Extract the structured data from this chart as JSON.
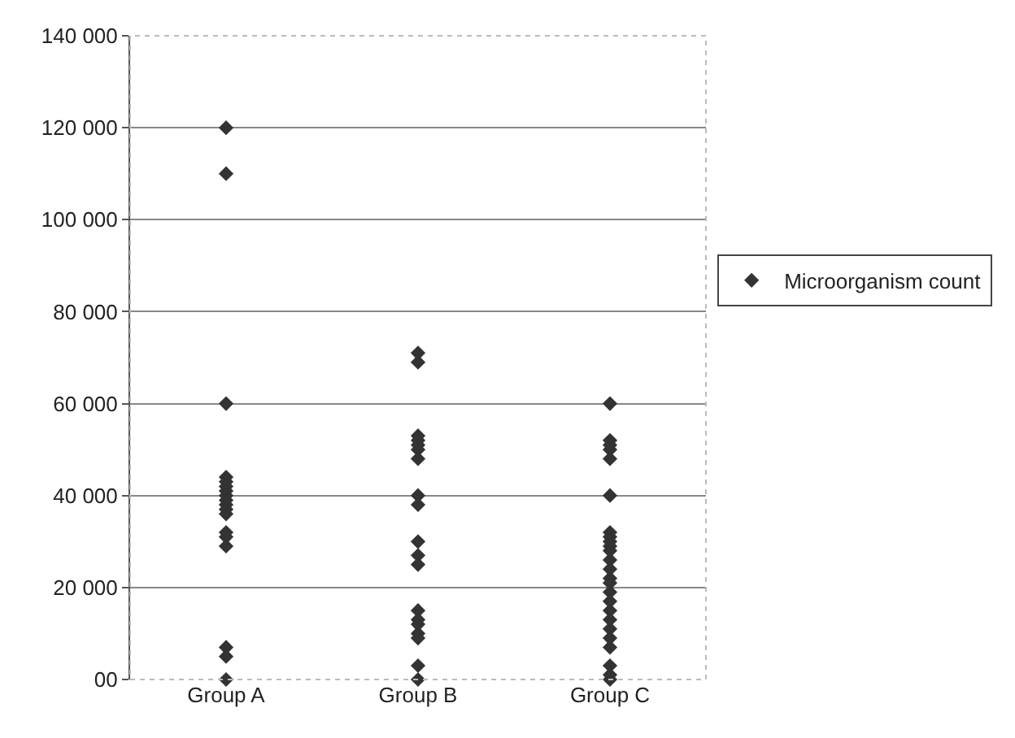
{
  "chart_data": {
    "type": "scatter",
    "categories": [
      "Group A",
      "Group B",
      "Group C"
    ],
    "series": [
      {
        "name": "Microorganism count",
        "color": "#333333",
        "x": [
          "Group A",
          "Group A",
          "Group A",
          "Group A",
          "Group A",
          "Group A",
          "Group A",
          "Group A",
          "Group A",
          "Group A",
          "Group A",
          "Group A",
          "Group A",
          "Group A",
          "Group A",
          "Group A",
          "Group A",
          "Group A",
          "Group B",
          "Group B",
          "Group B",
          "Group B",
          "Group B",
          "Group B",
          "Group B",
          "Group B",
          "Group B",
          "Group B",
          "Group B",
          "Group B",
          "Group B",
          "Group B",
          "Group B",
          "Group B",
          "Group B",
          "Group B",
          "Group B",
          "Group C",
          "Group C",
          "Group C",
          "Group C",
          "Group C",
          "Group C",
          "Group C",
          "Group C",
          "Group C",
          "Group C",
          "Group C",
          "Group C",
          "Group C",
          "Group C",
          "Group C",
          "Group C",
          "Group C",
          "Group C",
          "Group C",
          "Group C",
          "Group C",
          "Group C",
          "Group C",
          "Group C",
          "Group C"
        ],
        "values": [
          120000,
          110000,
          60000,
          44000,
          43000,
          42000,
          41000,
          40000,
          39000,
          38000,
          37000,
          36000,
          32000,
          31000,
          29000,
          7000,
          5000,
          0,
          71000,
          69000,
          53000,
          52000,
          51000,
          50000,
          48000,
          40000,
          38000,
          30000,
          27000,
          25000,
          15000,
          13000,
          12000,
          10000,
          9000,
          3000,
          0,
          60000,
          52000,
          51000,
          50000,
          48000,
          40000,
          32000,
          31000,
          30000,
          29000,
          28000,
          26000,
          24000,
          22000,
          21000,
          19000,
          17000,
          15000,
          13000,
          11000,
          9000,
          7000,
          3000,
          1000,
          0
        ]
      }
    ],
    "ylim": [
      0,
      140000
    ],
    "yticks": [
      {
        "value": 0,
        "label": "00"
      },
      {
        "value": 20000,
        "label": "20 000"
      },
      {
        "value": 40000,
        "label": "40 000"
      },
      {
        "value": 60000,
        "label": "60 000"
      },
      {
        "value": 80000,
        "label": "80 000"
      },
      {
        "value": 100000,
        "label": "100 000"
      },
      {
        "value": 120000,
        "label": "120 000"
      },
      {
        "value": 140000,
        "label": "140 000"
      }
    ],
    "grid": "y",
    "legend": "right",
    "marker": "diamond"
  }
}
